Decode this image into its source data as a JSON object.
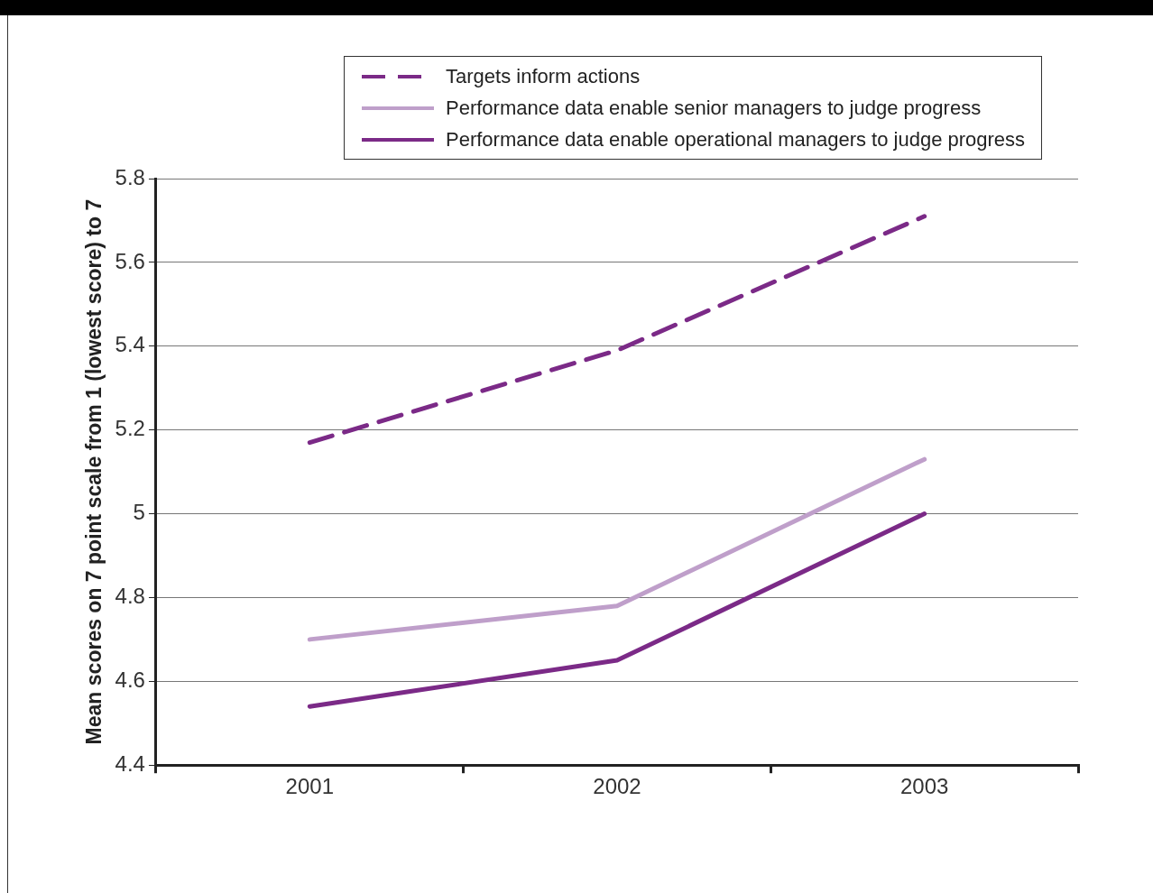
{
  "chart_data": {
    "type": "line",
    "ylabel": "Mean scores on 7 point scale from 1 (lowest score) to 7",
    "categories": [
      "2001",
      "2002",
      "2003"
    ],
    "series": [
      {
        "name": "Targets inform actions",
        "color": "#7b2a87",
        "line_style": "dashed",
        "values": [
          5.17,
          5.39,
          5.71
        ]
      },
      {
        "name": "Performance data enable senior managers to judge progress",
        "color": "#bf9fca",
        "line_style": "solid",
        "values": [
          4.7,
          4.78,
          5.13
        ]
      },
      {
        "name": "Performance data enable operational managers to judge progress",
        "color": "#7b2a87",
        "line_style": "solid",
        "values": [
          4.54,
          4.65,
          5.0
        ]
      }
    ],
    "ylim": [
      4.4,
      5.8
    ],
    "yticks": [
      4.4,
      4.6,
      4.8,
      5,
      5.2,
      5.4,
      5.6,
      5.8
    ],
    "grid": "y",
    "legend": "top right",
    "marker": "none"
  }
}
